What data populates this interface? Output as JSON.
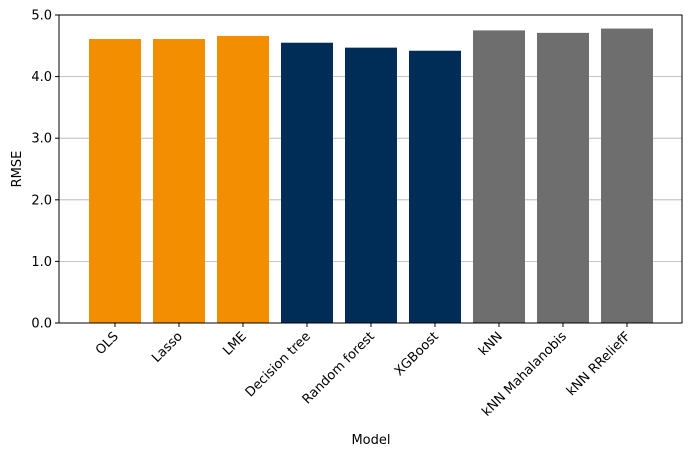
{
  "chart_data": {
    "type": "bar",
    "title": "",
    "xlabel": "Model",
    "ylabel": "RMSE",
    "ylim": [
      0,
      5.0
    ],
    "yticks": [
      "0.0",
      "1.0",
      "2.0",
      "3.0",
      "4.0",
      "5.0"
    ],
    "grid": "horizontal",
    "categories": [
      "OLS",
      "Lasso",
      "LME",
      "Decision tree",
      "Random forest",
      "XGBoost",
      "kNN",
      "kNN Mahalanobis",
      "kNN RReliefF"
    ],
    "values": [
      4.61,
      4.61,
      4.66,
      4.55,
      4.47,
      4.42,
      4.75,
      4.71,
      4.78
    ],
    "bar_colors": [
      "#f28e00",
      "#f28e00",
      "#f28e00",
      "#002d58",
      "#002d58",
      "#002d58",
      "#6e6e6e",
      "#6e6e6e",
      "#6e6e6e"
    ]
  }
}
